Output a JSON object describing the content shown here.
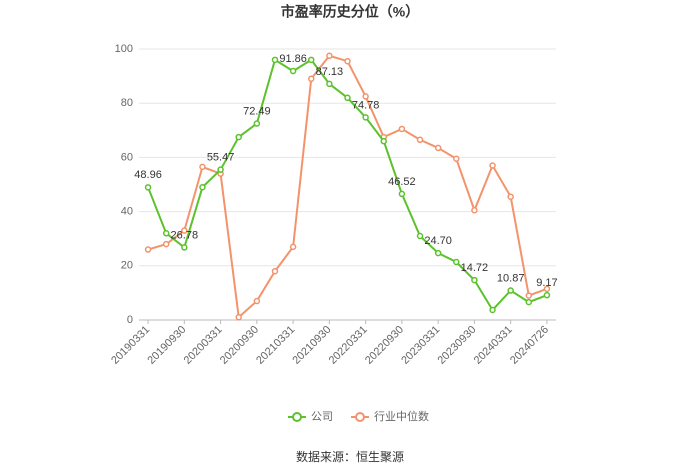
{
  "chart_data": {
    "type": "line",
    "title": "市盈率历史分位（%）",
    "categories": [
      "20190331",
      null,
      "20190930",
      null,
      "20200331",
      null,
      "20200930",
      null,
      "20210331",
      null,
      "20210930",
      null,
      "20220331",
      null,
      "20220930",
      null,
      "20230331",
      null,
      "20230930",
      null,
      "20240331",
      null,
      "20240726"
    ],
    "series": [
      {
        "name": "公司",
        "color": "#5cc22c",
        "values": [
          48.96,
          32,
          26.78,
          49,
          55.47,
          67.5,
          72.49,
          96,
          91.86,
          96,
          87.13,
          82,
          74.78,
          66,
          46.52,
          31,
          24.7,
          21.4,
          14.72,
          3.7,
          10.87,
          6.6,
          9.17
        ],
        "value_labels": [
          "48.96",
          null,
          "26.78",
          null,
          "55.47",
          null,
          "72.49",
          null,
          "91.86",
          null,
          "87.13",
          null,
          "74.78",
          null,
          "46.52",
          null,
          "24.70",
          null,
          "14.72",
          null,
          "10.87",
          null,
          "9.17"
        ]
      },
      {
        "name": "行业中位数",
        "color": "#f3936c",
        "values": [
          26,
          28,
          33,
          56.5,
          54,
          1,
          7,
          18,
          27,
          89,
          97.5,
          95.5,
          82.5,
          67.5,
          70.5,
          66.5,
          63.5,
          59.5,
          40.5,
          57,
          45.5,
          9,
          11.5
        ]
      }
    ],
    "ylim": [
      0,
      100
    ],
    "yticks": [
      0,
      20,
      40,
      60,
      80,
      100
    ],
    "grid": true,
    "legend": "bottom",
    "source": "数据来源：恒生聚源"
  }
}
